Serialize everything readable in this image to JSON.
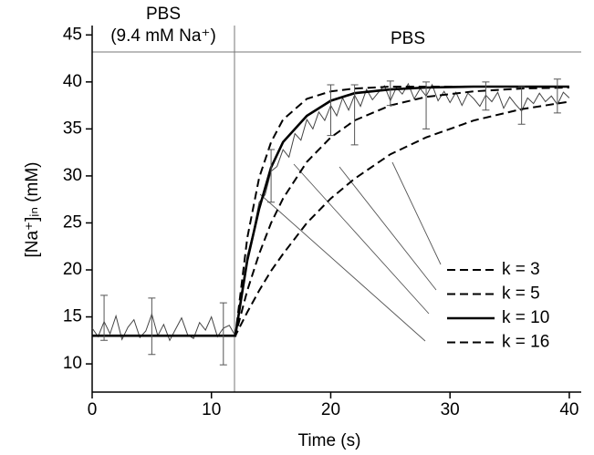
{
  "chart_data": {
    "type": "line",
    "xlabel": "Time (s)",
    "ylabel": "[Na⁺]ᵢₙ (mM)",
    "annotations": [
      "PBS",
      "(9.4 mM Na⁺)",
      "PBS"
    ],
    "xlim": [
      0,
      41
    ],
    "ylim": [
      7,
      46
    ],
    "xticks": [
      0,
      10,
      20,
      30,
      40
    ],
    "yticks": [
      10,
      15,
      20,
      25,
      30,
      35,
      40,
      45
    ],
    "series": [
      {
        "color": "#444444",
        "width": 1,
        "dash": false,
        "x": [
          0,
          0.5,
          1,
          1.5,
          2,
          2.5,
          3,
          3.5,
          4,
          4.5,
          5,
          5.5,
          6,
          6.5,
          7,
          7.5,
          8,
          8.5,
          9,
          9.5,
          10,
          10.5,
          11,
          11.5,
          12,
          12.5,
          13,
          13.5,
          14,
          14.5,
          15,
          15.5,
          16,
          16.5,
          17,
          17.5,
          18,
          18.5,
          19,
          19.5,
          20,
          20.5,
          21,
          21.5,
          22,
          22.5,
          23,
          23.5,
          24,
          24.5,
          25,
          25.5,
          26,
          26.5,
          27,
          27.5,
          28,
          28.5,
          29,
          29.5,
          30,
          30.5,
          31,
          31.5,
          32,
          32.5,
          33,
          33.5,
          34,
          34.5,
          35,
          35.5,
          36,
          36.5,
          37,
          37.5,
          38,
          38.5,
          39,
          39.5,
          40
        ],
        "values": [
          13.8,
          12.9,
          14.5,
          13.2,
          15.1,
          12.6,
          13.9,
          14.7,
          12.8,
          13.5,
          15.3,
          13.0,
          14.2,
          12.5,
          13.7,
          14.9,
          13.1,
          12.7,
          14.4,
          13.6,
          15.0,
          12.9,
          13.8,
          14.1,
          13.0,
          17.5,
          21.5,
          24.0,
          27.2,
          28.0,
          30.5,
          31.0,
          32.8,
          32.0,
          34.5,
          33.8,
          36.0,
          35.0,
          36.8,
          35.9,
          37.5,
          36.4,
          38.3,
          37.0,
          38.6,
          37.4,
          39.2,
          38.1,
          38.9,
          39.6,
          38.0,
          39.4,
          38.7,
          39.8,
          38.2,
          39.3,
          38.5,
          39.7,
          38.0,
          39.0,
          37.8,
          38.9,
          37.5,
          38.8,
          38.2,
          37.4,
          38.6,
          37.9,
          38.9,
          37.2,
          38.4,
          37.6,
          36.9,
          38.3,
          37.7,
          38.8,
          37.9,
          38.5,
          37.6,
          38.9,
          38.3
        ]
      },
      {
        "name": "k = 3",
        "color": "#000000",
        "width": 2,
        "dash": true,
        "x": [
          0,
          12,
          13,
          14,
          15,
          16,
          18,
          20,
          22,
          25,
          28,
          32,
          36,
          40
        ],
        "values": [
          13,
          13,
          15.5,
          17.8,
          19.9,
          21.7,
          25.0,
          27.6,
          29.7,
          32.3,
          34.1,
          35.9,
          37.1,
          37.9
        ]
      },
      {
        "name": "k = 5",
        "color": "#000000",
        "width": 2,
        "dash": true,
        "x": [
          0,
          12,
          13,
          14,
          15,
          16,
          18,
          20,
          22,
          25,
          28,
          32,
          36,
          40
        ],
        "values": [
          13,
          13,
          17.8,
          21.7,
          25.0,
          27.6,
          31.5,
          34.1,
          35.9,
          37.5,
          38.4,
          39.0,
          39.3,
          39.4
        ]
      },
      {
        "name": "k = 10",
        "color": "#000000",
        "width": 2.6,
        "dash": false,
        "x": [
          0,
          12,
          13,
          14,
          15,
          16,
          18,
          20,
          22,
          25,
          28,
          32,
          36,
          40
        ],
        "values": [
          13,
          13,
          21.0,
          26.5,
          30.9,
          33.6,
          36.4,
          38.0,
          38.8,
          39.2,
          39.4,
          39.5,
          39.5,
          39.5
        ]
      },
      {
        "name": "k = 16",
        "color": "#000000",
        "width": 2,
        "dash": true,
        "x": [
          0,
          12,
          13,
          14,
          15,
          16,
          18,
          20,
          22,
          25,
          28,
          32,
          36,
          40
        ],
        "values": [
          13,
          13,
          23.4,
          29.8,
          33.6,
          36.0,
          38.2,
          39.0,
          39.3,
          39.5,
          39.5,
          39.5,
          39.5,
          39.5
        ]
      }
    ],
    "error_bars": {
      "color": "#555555",
      "x": [
        1,
        5,
        11,
        15,
        20,
        22,
        25,
        28,
        33,
        36,
        39
      ],
      "values": [
        14.9,
        14.0,
        13.2,
        30.0,
        37.0,
        36.5,
        38.8,
        37.5,
        38.5,
        37.5,
        38.5
      ],
      "errors": [
        2.4,
        3.0,
        3.3,
        2.8,
        2.7,
        3.2,
        1.3,
        2.5,
        1.5,
        2.0,
        1.8
      ]
    }
  }
}
